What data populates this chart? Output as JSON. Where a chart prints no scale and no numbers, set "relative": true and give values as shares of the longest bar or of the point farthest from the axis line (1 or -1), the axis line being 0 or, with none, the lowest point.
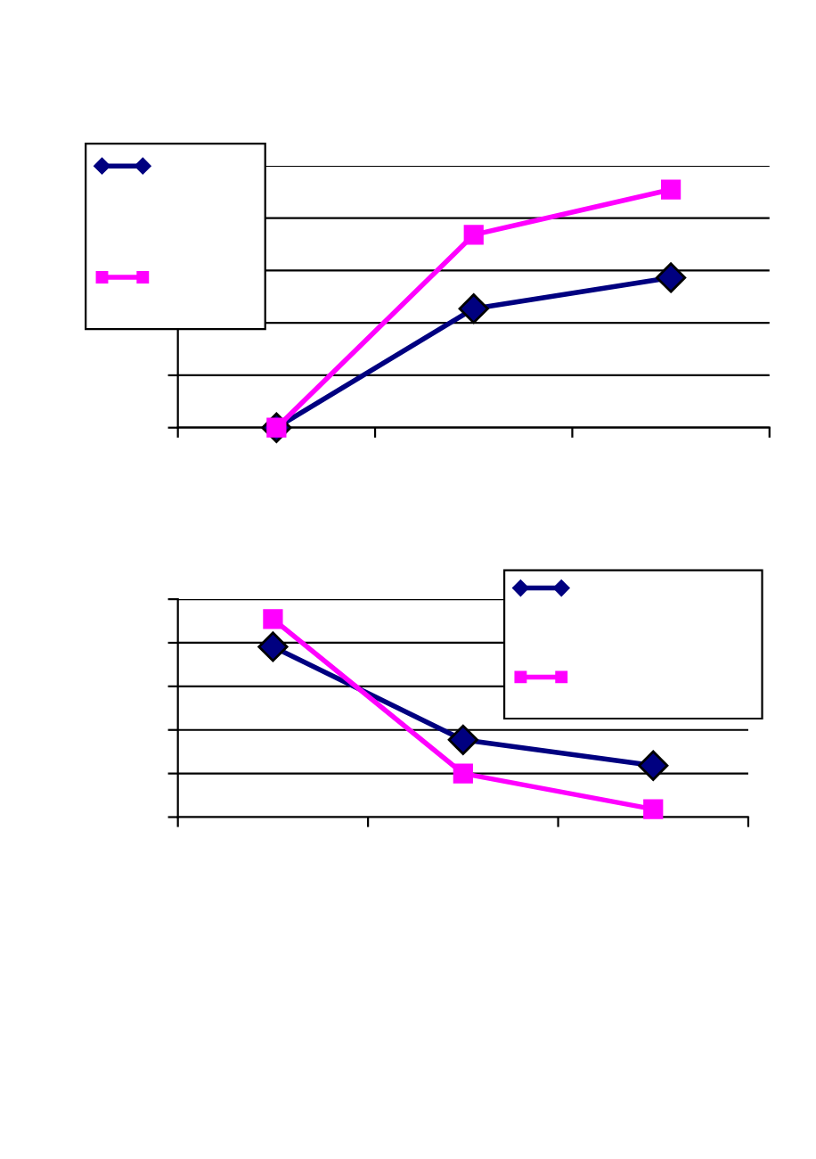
{
  "chart_data": [
    {
      "type": "line",
      "relative": true,
      "categories": [
        null,
        null,
        null
      ],
      "grid": "y",
      "series": [
        {
          "color": "#000080",
          "marker": "diamond",
          "values": [
            0,
            0.5,
            0.63
          ]
        },
        {
          "color": "#ff00ff",
          "marker": "square",
          "values": [
            0,
            0.81,
            1
          ]
        }
      ]
    },
    {
      "type": "line",
      "relative": true,
      "categories": [
        null,
        null,
        null
      ],
      "grid": "y",
      "series": [
        {
          "color": "#000080",
          "marker": "diamond",
          "values": [
            0.86,
            0.39,
            0.26
          ]
        },
        {
          "color": "#ff00ff",
          "marker": "square",
          "values": [
            1,
            0.22,
            0.04
          ]
        }
      ]
    }
  ]
}
